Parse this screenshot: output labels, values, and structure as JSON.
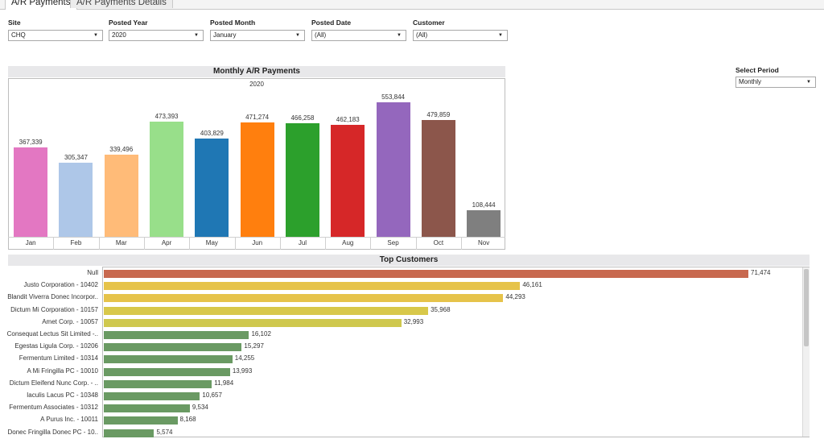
{
  "tabs": [
    {
      "label": "A/R Payments",
      "active": true
    },
    {
      "label": "A/R Payments Details",
      "active": false
    }
  ],
  "filters": [
    {
      "label": "Site",
      "value": "CHQ"
    },
    {
      "label": "Posted Year",
      "value": "2020"
    },
    {
      "label": "Posted Month",
      "value": "January"
    },
    {
      "label": "Posted Date",
      "value": "(All)"
    },
    {
      "label": "Customer",
      "value": "(All)"
    }
  ],
  "select_period": {
    "label": "Select Period",
    "value": "Monthly"
  },
  "monthly_chart": {
    "title": "Monthly A/R Payments",
    "year": "2020"
  },
  "top_customers": {
    "title": "Top Customers"
  },
  "chart_data": [
    {
      "type": "bar",
      "title": "Monthly A/R Payments",
      "subtitle": "2020",
      "categories": [
        "Jan",
        "Feb",
        "Mar",
        "Apr",
        "May",
        "Jun",
        "Jul",
        "Aug",
        "Sep",
        "Oct",
        "Nov"
      ],
      "values": [
        367339,
        305347,
        339496,
        473393,
        403829,
        471274,
        466258,
        462183,
        553844,
        479859,
        108444
      ],
      "value_labels": [
        "367,339",
        "305,347",
        "339,496",
        "473,393",
        "403,829",
        "471,274",
        "466,258",
        "462,183",
        "553,844",
        "479,859",
        "108,444"
      ],
      "colors": [
        "#e377c2",
        "#aec7e8",
        "#ffbb78",
        "#98df8a",
        "#1f77b4",
        "#ff7f0e",
        "#2ca02c",
        "#d62728",
        "#9467bd",
        "#8c564b",
        "#7f7f7f"
      ],
      "ylim": [
        0,
        580000
      ],
      "grid": false
    },
    {
      "type": "bar",
      "orientation": "horizontal",
      "title": "Top Customers",
      "categories": [
        "Null",
        "Justo Corporation - 10402",
        "Blandit Viverra Donec Incorpor..",
        "Dictum Mi Corporation - 10157",
        "Amet Corp. - 10057",
        "Consequat Lectus Sit Limited -..",
        "Egestas Ligula Corp. - 10206",
        "Fermentum Limited - 10314",
        "A Mi Fringilla PC - 10010",
        "Dictum Eleifend Nunc Corp. - ..",
        "Iaculis Lacus PC - 10348",
        "Fermentum Associates - 10312",
        "A Purus Inc. - 10011",
        "Donec Fringilla Donec PC - 10.."
      ],
      "values": [
        71474,
        46161,
        44293,
        35968,
        32993,
        16102,
        15297,
        14255,
        13993,
        11984,
        10657,
        9534,
        8168,
        5574
      ],
      "value_labels": [
        "71,474",
        "46,161",
        "44,293",
        "35,968",
        "32,993",
        "16,102",
        "15,297",
        "14,255",
        "13,993",
        "11,984",
        "10,657",
        "9,534",
        "8,168",
        "5,574"
      ],
      "colors": [
        "#c8694f",
        "#e6c34a",
        "#e6c34a",
        "#d8c84a",
        "#cfc84e",
        "#6a9a63",
        "#6a9a63",
        "#6a9a63",
        "#6a9a63",
        "#6a9a63",
        "#6a9a63",
        "#6a9a63",
        "#6a9a63",
        "#6a9a63"
      ],
      "xlim": [
        0,
        71474
      ],
      "grid": false
    }
  ]
}
